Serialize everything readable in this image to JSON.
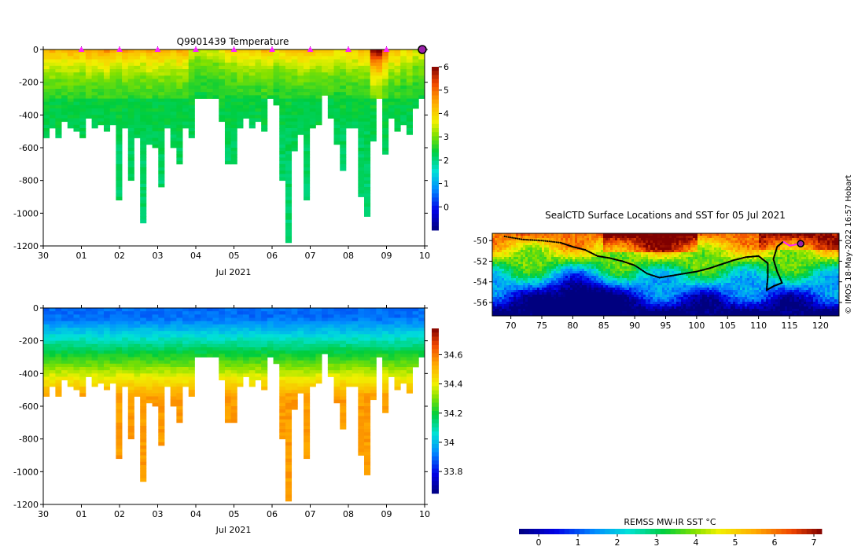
{
  "chart_data": [
    {
      "type": "heatmap",
      "id": "temperature",
      "title": "Q9901439  Temperature",
      "xlabel": "Jul 2021",
      "ylabel": "",
      "x_ticks": [
        "30",
        "01",
        "02",
        "03",
        "04",
        "05",
        "06",
        "07",
        "08",
        "09",
        "10"
      ],
      "x_range_days": [
        0,
        10
      ],
      "ylim": [
        -1200,
        0
      ],
      "y_ticks": [
        0,
        -200,
        -400,
        -600,
        -800,
        -1000,
        -1200
      ],
      "colorbar": {
        "min": -1,
        "max": 6,
        "ticks": [
          0,
          1,
          2,
          3,
          4,
          5,
          6
        ]
      },
      "marker_days": [
        1,
        2,
        3,
        4,
        5,
        6,
        7,
        8,
        9
      ],
      "current_marker_day": 10,
      "profile_depths": [
        530,
        480,
        540,
        440,
        480,
        500,
        540,
        420,
        480,
        450,
        500,
        460,
        910,
        470,
        800,
        540,
        1060,
        580,
        600,
        830,
        480,
        600,
        700,
        480,
        530,
        300,
        300,
        300,
        300,
        430,
        690,
        690,
        480,
        420,
        480,
        440,
        500,
        300,
        340,
        800,
        1170,
        620,
        520,
        920,
        480,
        460,
        280,
        410,
        580,
        730,
        480,
        480,
        890,
        1020,
        550,
        300,
        630,
        420,
        500,
        450,
        520,
        350,
        300
      ],
      "temp_surface": [
        4.5,
        4.5,
        4.4,
        4.4,
        4.6,
        4.5,
        4.3,
        4.7,
        4.5,
        4.6,
        4.8,
        4.5,
        4.2,
        4.6,
        4.5,
        4.4,
        4.3,
        4.7,
        4.5,
        4.6,
        4.4,
        4.2,
        4.6,
        4.5,
        3.6,
        3.4,
        3.5,
        3.6,
        3.5,
        3.8,
        4.0,
        3.9,
        4.2,
        4.1,
        4.3,
        4.0,
        4.4,
        4.2,
        3.8,
        4.1,
        4.3,
        4.2,
        4.4,
        4.5,
        4.3,
        4.1,
        4.3,
        4.2,
        3.9,
        4.0,
        4.2,
        4.1,
        4.3,
        4.2,
        6.1,
        6.2,
        5.2,
        4.3,
        4.4,
        3.8,
        4.2,
        3.6,
        3.8
      ]
    },
    {
      "type": "heatmap",
      "id": "salinity",
      "title": "",
      "xlabel": "Jul 2021",
      "ylabel": "",
      "x_ticks": [
        "30",
        "01",
        "02",
        "03",
        "04",
        "05",
        "06",
        "07",
        "08",
        "09",
        "10"
      ],
      "x_range_days": [
        0,
        10
      ],
      "ylim": [
        -1200,
        0
      ],
      "y_ticks": [
        0,
        -200,
        -400,
        -600,
        -800,
        -1000,
        -1200
      ],
      "colorbar": {
        "min": 33.65,
        "max": 34.78,
        "ticks": [
          33.8,
          34,
          34.2,
          34.4,
          34.6
        ]
      },
      "surface_salinity": 33.9,
      "deep_salinity": 34.55
    },
    {
      "type": "heatmap",
      "id": "sst_map",
      "title": "SealCTD Surface Locations and SST for 05 Jul 2021",
      "x_ticks": [
        70,
        75,
        80,
        85,
        90,
        95,
        100,
        105,
        110,
        115,
        120
      ],
      "y_ticks": [
        -50,
        -52,
        -54,
        -56
      ],
      "lon_range": [
        67,
        123
      ],
      "lat_range": [
        -57.3,
        -49.3
      ],
      "track_last_position": {
        "lon": 116.8,
        "lat": -50.3
      }
    }
  ],
  "sst_colorbar": {
    "label": "REMSS MW-IR SST °C",
    "min": -0.5,
    "max": 7.2,
    "ticks": [
      0,
      1,
      2,
      3,
      4,
      5,
      6,
      7
    ]
  },
  "credit": "© IMOS 18-May-2022 16:57 Hobart",
  "colors": {
    "marker": "#ff22ff",
    "current": "#9922aa",
    "track": "#000000"
  }
}
